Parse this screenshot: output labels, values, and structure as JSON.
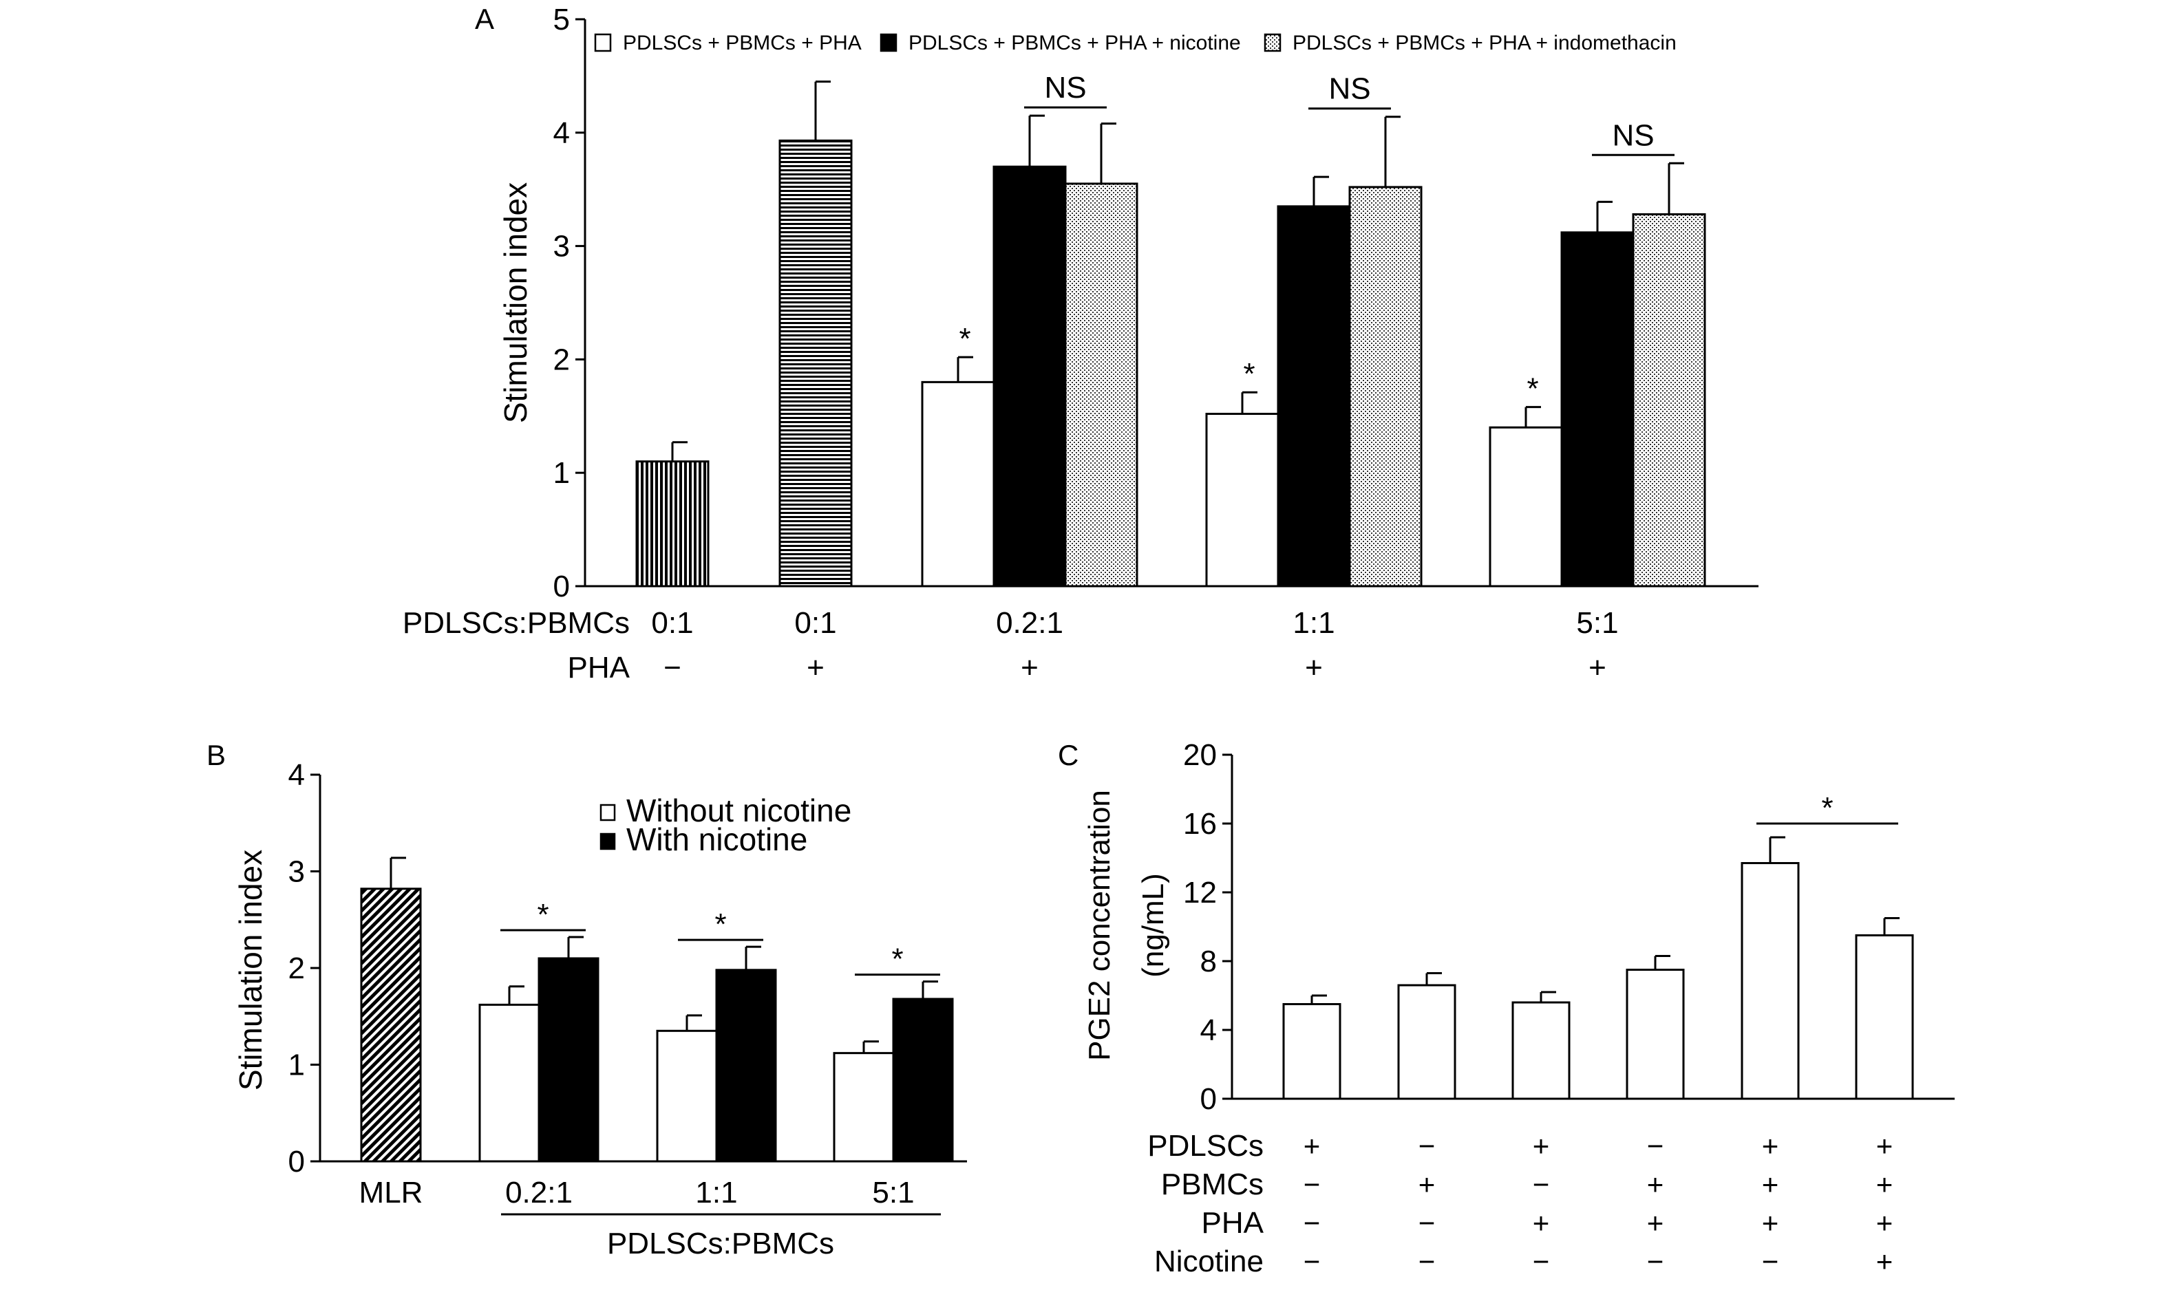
{
  "chart_data": [
    {
      "panel": "A",
      "type": "bar",
      "ylabel": "Stimulation index",
      "ylim": [
        0,
        5
      ],
      "yticks": [
        "0",
        "1",
        "2",
        "3",
        "4",
        "5"
      ],
      "legend": {
        "placement": "top",
        "entries": [
          {
            "name": "PDLSCs + PBMCs + PHA",
            "pattern": "open"
          },
          {
            "name": "PDLSCs + PBMCs + PHA + nicotine",
            "pattern": "solid"
          },
          {
            "name": "PDLSCs + PBMCs + PHA + indomethacin",
            "pattern": "dots"
          }
        ]
      },
      "row_labels": [
        "PDLSCs:PBMCs",
        "PHA"
      ],
      "groups": [
        {
          "ratio": "0:1",
          "pha": "−",
          "bars": [
            {
              "pattern": "vlines",
              "value": 1.1,
              "err": 0.17
            }
          ]
        },
        {
          "ratio": "0:1",
          "pha": "+",
          "bars": [
            {
              "pattern": "hlines",
              "value": 3.93,
              "err": 0.52
            }
          ]
        },
        {
          "ratio": "0.2:1",
          "pha": "+",
          "bars": [
            {
              "pattern": "open",
              "value": 1.8,
              "err": 0.22,
              "mark": "*"
            },
            {
              "pattern": "solid",
              "value": 3.7,
              "err": 0.45
            },
            {
              "pattern": "dots",
              "value": 3.55,
              "err": 0.53
            }
          ],
          "bracket": "NS"
        },
        {
          "ratio": "1:1",
          "pha": "+",
          "bars": [
            {
              "pattern": "open",
              "value": 1.52,
              "err": 0.19,
              "mark": "*"
            },
            {
              "pattern": "solid",
              "value": 3.35,
              "err": 0.26
            },
            {
              "pattern": "dots",
              "value": 3.52,
              "err": 0.62
            }
          ],
          "bracket": "NS"
        },
        {
          "ratio": "5:1",
          "pha": "+",
          "bars": [
            {
              "pattern": "open",
              "value": 1.4,
              "err": 0.18,
              "mark": "*"
            },
            {
              "pattern": "solid",
              "value": 3.12,
              "err": 0.27
            },
            {
              "pattern": "dots",
              "value": 3.28,
              "err": 0.45
            }
          ],
          "bracket": "NS"
        }
      ]
    },
    {
      "panel": "B",
      "type": "bar",
      "ylabel": "Stimulation index",
      "ylim": [
        0,
        4
      ],
      "yticks": [
        "0",
        "1",
        "2",
        "3",
        "4"
      ],
      "xlabel": "PDLSCs:PBMCs",
      "legend": {
        "placement": "top-right",
        "entries": [
          {
            "name": "Without nicotine",
            "pattern": "open"
          },
          {
            "name": "With nicotine",
            "pattern": "solid"
          }
        ]
      },
      "groups": [
        {
          "label": "MLR",
          "bars": [
            {
              "pattern": "diag",
              "value": 2.82,
              "err": 0.32
            }
          ]
        },
        {
          "label": "0.2:1",
          "bars": [
            {
              "pattern": "open",
              "value": 1.62,
              "err": 0.19
            },
            {
              "pattern": "solid",
              "value": 2.1,
              "err": 0.22
            }
          ],
          "bracket": "*"
        },
        {
          "label": "1:1",
          "bars": [
            {
              "pattern": "open",
              "value": 1.35,
              "err": 0.16
            },
            {
              "pattern": "solid",
              "value": 1.98,
              "err": 0.24
            }
          ],
          "bracket": "*"
        },
        {
          "label": "5:1",
          "bars": [
            {
              "pattern": "open",
              "value": 1.12,
              "err": 0.12
            },
            {
              "pattern": "solid",
              "value": 1.68,
              "err": 0.18
            }
          ],
          "bracket": "*"
        }
      ]
    },
    {
      "panel": "C",
      "type": "bar",
      "ylabel_lines": [
        "PGE2 concentration",
        "(ng/mL)"
      ],
      "ylim": [
        0,
        20
      ],
      "yticks": [
        "0",
        "4",
        "8",
        "12",
        "16",
        "20"
      ],
      "row_labels": [
        "PDLSCs",
        "PBMCs",
        "PHA",
        "Nicotine"
      ],
      "bars": [
        {
          "value": 5.5,
          "err": 0.5,
          "signs": [
            "+",
            "−",
            "−",
            "−"
          ]
        },
        {
          "value": 6.6,
          "err": 0.7,
          "signs": [
            "−",
            "+",
            "−",
            "−"
          ]
        },
        {
          "value": 5.6,
          "err": 0.6,
          "signs": [
            "+",
            "−",
            "+",
            "−"
          ]
        },
        {
          "value": 7.5,
          "err": 0.8,
          "signs": [
            "−",
            "+",
            "+",
            "−"
          ]
        },
        {
          "value": 13.7,
          "err": 1.5,
          "signs": [
            "+",
            "+",
            "+",
            "−"
          ]
        },
        {
          "value": 9.5,
          "err": 1.0,
          "signs": [
            "+",
            "+",
            "+",
            "+"
          ]
        }
      ],
      "bracket": {
        "from": 4,
        "to": 5,
        "label": "*"
      }
    }
  ]
}
